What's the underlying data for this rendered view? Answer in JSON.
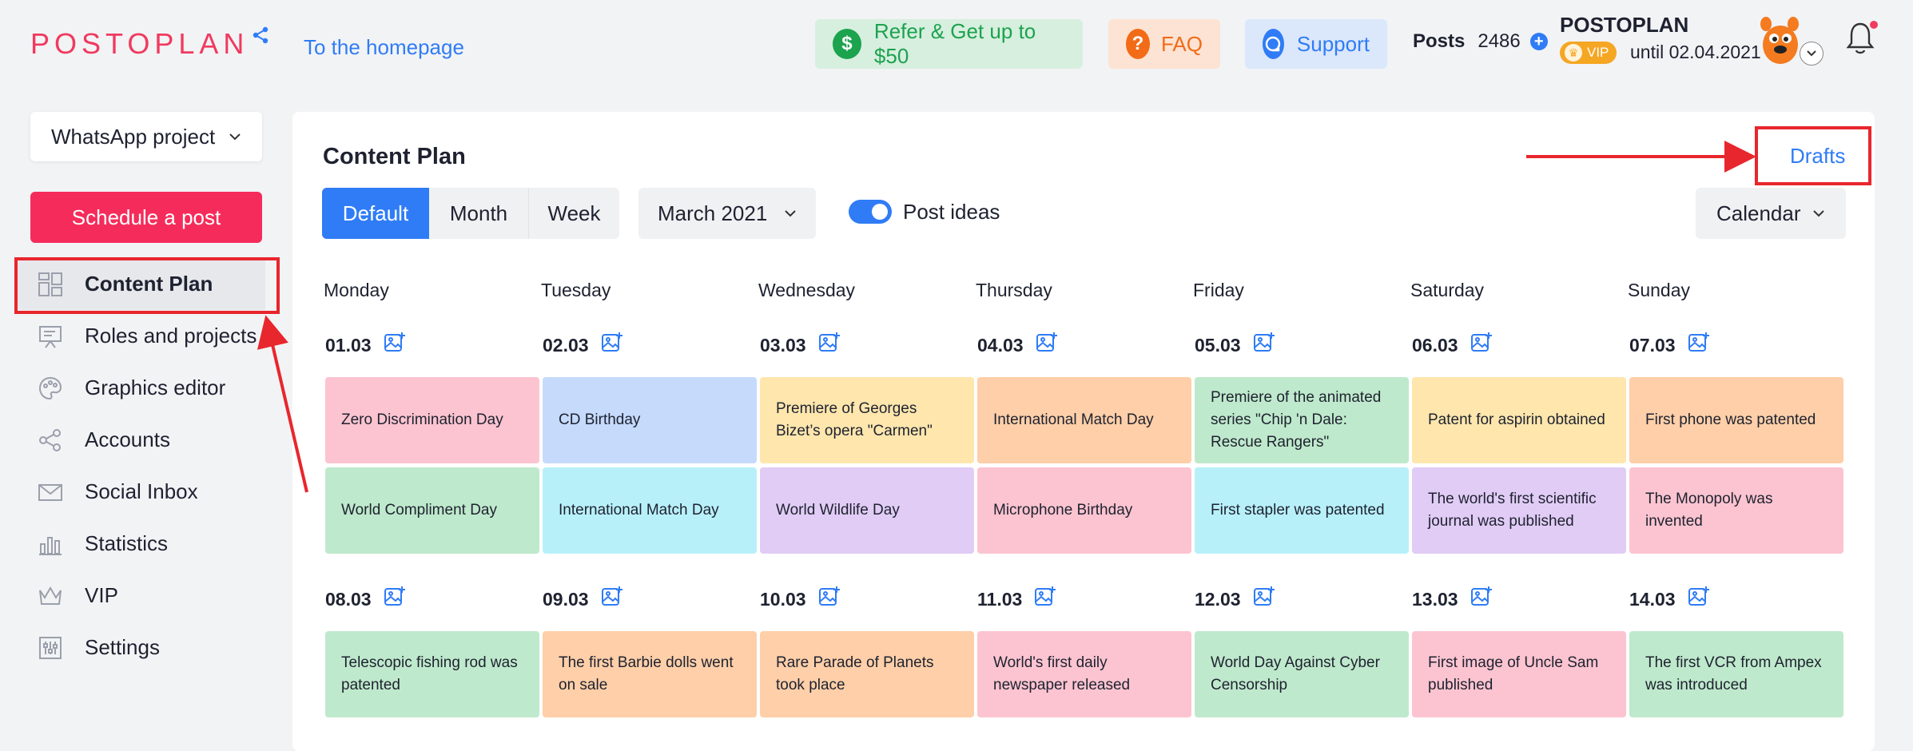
{
  "header": {
    "logo_text": "POSTOPLAN",
    "homepage_link": "To the homepage",
    "refer_label": "Refer & Get up to $50",
    "faq_label": "FAQ",
    "support_label": "Support",
    "posts_label": "Posts",
    "posts_count": "2486",
    "account_name": "POSTOPLAN",
    "vip_label": "VIP",
    "until_text": "until 02.04.2021"
  },
  "sidebar": {
    "project": "WhatsApp project",
    "schedule_label": "Schedule a post",
    "items": [
      {
        "label": "Content Plan",
        "icon": "grid-icon"
      },
      {
        "label": "Roles and projects",
        "icon": "presentation-icon"
      },
      {
        "label": "Graphics editor",
        "icon": "palette-icon"
      },
      {
        "label": "Accounts",
        "icon": "share-icon"
      },
      {
        "label": "Social Inbox",
        "icon": "envelope-icon"
      },
      {
        "label": "Statistics",
        "icon": "bar-chart-icon"
      },
      {
        "label": "VIP",
        "icon": "crown-icon"
      },
      {
        "label": "Settings",
        "icon": "sliders-icon"
      }
    ]
  },
  "main": {
    "title": "Content Plan",
    "drafts_label": "Drafts",
    "view_default": "Default",
    "view_month": "Month",
    "view_week": "Week",
    "month_value": "March 2021",
    "post_ideas_label": "Post ideas",
    "calendar_label": "Calendar",
    "days": [
      "Monday",
      "Tuesday",
      "Wednesday",
      "Thursday",
      "Friday",
      "Saturday",
      "Sunday"
    ],
    "week1_dates": [
      "01.03",
      "02.03",
      "03.03",
      "04.03",
      "05.03",
      "06.03",
      "07.03"
    ],
    "week2_dates": [
      "08.03",
      "09.03",
      "10.03",
      "11.03",
      "12.03",
      "13.03",
      "14.03"
    ],
    "week1_row1": [
      "Zero Discrimination Day",
      "CD Birthday",
      "Premiere of Georges Bizet’s opera \"Carmen\"",
      "International Match Day",
      "Premiere of the animated series \"Chip 'n Dale: Rescue Rangers\"",
      "Patent for aspirin obtained",
      "First phone was patented"
    ],
    "week1_row2": [
      "World Compliment Day",
      "International Match Day",
      "World Wildlife Day",
      "Microphone Birthday",
      "First stapler was patented",
      "The world's first scientific journal was published",
      "The Monopoly was invented"
    ],
    "week2_row1": [
      "Telescopic fishing rod was patented",
      "The first Barbie dolls went on sale",
      "Rare Parade of Planets took place",
      "World's first daily newspaper released",
      "World Day Against Cyber Censorship",
      "First image of Uncle Sam published",
      "The first VCR from Ampex was introduced"
    ]
  },
  "colors": {
    "accent": "#2f7cf6",
    "brand": "#f03a5f",
    "annotation": "#e8262d"
  }
}
